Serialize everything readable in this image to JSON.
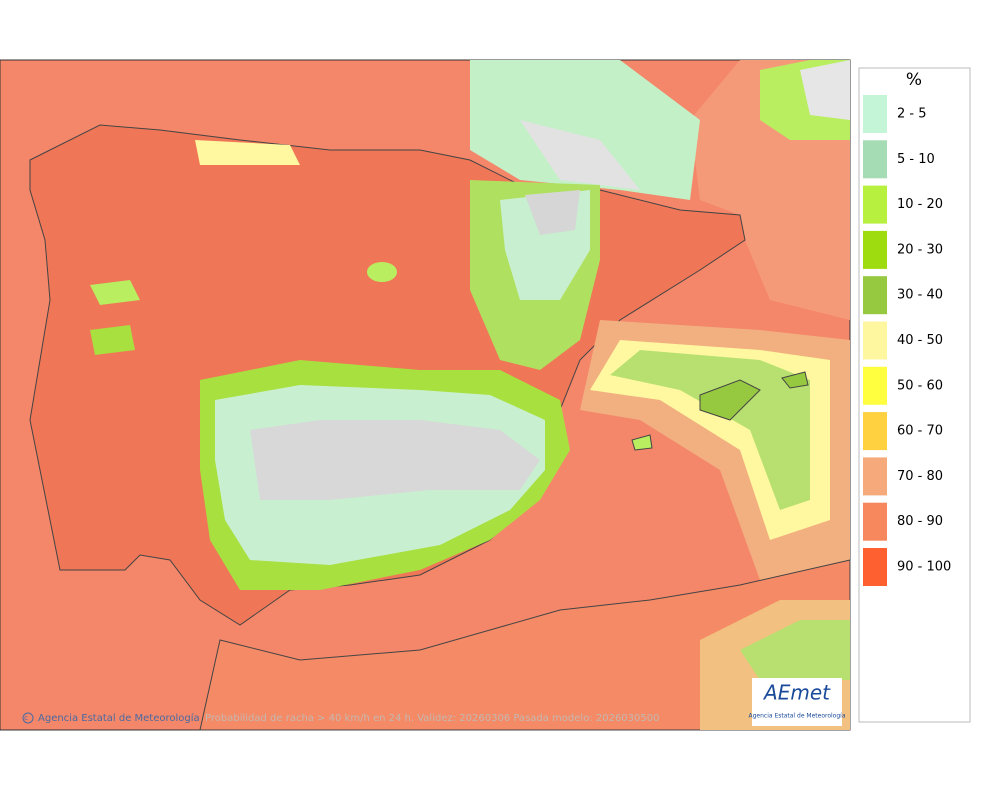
{
  "legend": {
    "title": "%",
    "items": [
      {
        "label": "2 - 5",
        "color": "#c4f5d6"
      },
      {
        "label": "5 - 10",
        "color": "#a6dcb4"
      },
      {
        "label": "10 - 20",
        "color": "#b8f040"
      },
      {
        "label": "20 - 30",
        "color": "#9edc10"
      },
      {
        "label": "30 - 40",
        "color": "#96c840"
      },
      {
        "label": "40 - 50",
        "color": "#fff7a0"
      },
      {
        "label": "50 - 60",
        "color": "#ffff40"
      },
      {
        "label": "60 - 70",
        "color": "#ffd040"
      },
      {
        "label": "70 - 80",
        "color": "#f6aa7c"
      },
      {
        "label": "80 - 90",
        "color": "#f7885e"
      },
      {
        "label": "90 - 100",
        "color": "#ff6030"
      }
    ]
  },
  "footer": {
    "credit": "Agencia Estatal de Meteorología",
    "caption": "Probabilidad de racha > 40 km/h en 24 h. Validez: 20260306 Pasada modelo: 2026030500"
  },
  "logo": {
    "name": "AEmet",
    "subtitle": "Agencia Estatal de Meteorología"
  }
}
